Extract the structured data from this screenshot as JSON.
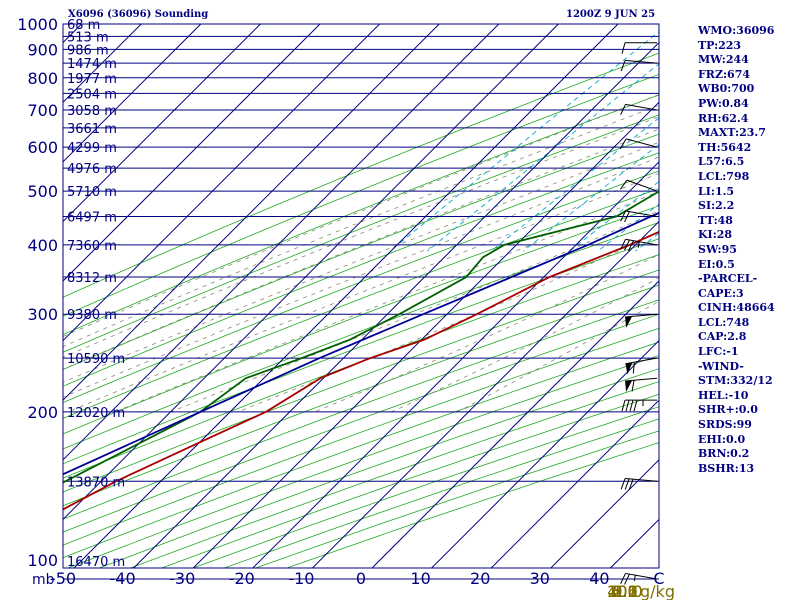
{
  "header": {
    "station": "X6096 (36096) Sounding",
    "time": "1200Z  9 JUN 25"
  },
  "indices": [
    "WMO:36096",
    "TP:223",
    "MW:244",
    "FRZ:674",
    "WB0:700",
    "PW:0.84",
    "RH:62.4",
    "MAXT:23.7",
    "TH:5642",
    "L57:6.5",
    "LCL:798",
    "LI:1.5",
    "SI:2.2",
    "TT:48",
    "KI:28",
    "SW:95",
    "EI:0.5",
    "-PARCEL-",
    "CAPE:3",
    "CINH:48664",
    "LCL:748",
    "CAP:2.8",
    "LFC:-1",
    "-WIND-",
    "STM:332/12",
    "HEL:-10",
    "SHR+:0.0",
    "SRDS:99",
    "EHI:0.0",
    "BRN:0.2",
    "BSHR:13"
  ],
  "chart_data": {
    "type": "line",
    "title": "X6096 (36096) Sounding",
    "ylabel": "mb",
    "xlabel": "C",
    "mixing_ratio_unit": "g/kg",
    "xlim": [
      -50,
      50
    ],
    "ylim": [
      1000,
      100
    ],
    "log_y": true,
    "skewed_isotherms": true,
    "pressure_ticks": [
      100,
      200,
      300,
      400,
      500,
      600,
      700,
      800,
      900,
      1000
    ],
    "temperature_ticks": [
      "-50",
      "-40",
      "-30",
      "-20",
      "-10",
      "0",
      "10",
      "20",
      "30",
      "40",
      "C"
    ],
    "height_labels": [
      {
        "p": 100,
        "label": "16470 m"
      },
      {
        "p": 150,
        "label": "13870 m"
      },
      {
        "p": 200,
        "label": "12020 m"
      },
      {
        "p": 250,
        "label": "10590 m"
      },
      {
        "p": 300,
        "label": "9380 m"
      },
      {
        "p": 350,
        "label": "8312 m"
      },
      {
        "p": 400,
        "label": "7360 m"
      },
      {
        "p": 450,
        "label": "6497 m"
      },
      {
        "p": 500,
        "label": "5710 m"
      },
      {
        "p": 550,
        "label": "4976 m"
      },
      {
        "p": 600,
        "label": "4299 m"
      },
      {
        "p": 650,
        "label": "3661 m"
      },
      {
        "p": 700,
        "label": "3058 m"
      },
      {
        "p": 750,
        "label": "2504 m"
      },
      {
        "p": 800,
        "label": "1977 m"
      },
      {
        "p": 850,
        "label": "1474 m"
      },
      {
        "p": 900,
        "label": "986 m"
      },
      {
        "p": 950,
        "label": "513 m"
      },
      {
        "p": 1000,
        "label": "68 m"
      }
    ],
    "mixing_ratio_labels": [
      {
        "w": 0.1,
        "label": "0.1"
      },
      {
        "w": 0.2,
        "label": "0.2"
      },
      {
        "w": 0.6,
        "label": "0.6"
      },
      {
        "w": 1.0,
        "label": "1.0"
      },
      {
        "w": 2.0,
        "label": "2.0"
      },
      {
        "w": 3.0,
        "label": "3.0"
      },
      {
        "w": 5.0,
        "label": "5.0"
      },
      {
        "w": 10.0,
        "label": "10.0"
      },
      {
        "w": 20.0,
        "label": "20.0"
      },
      {
        "w": 40.0,
        "label": "40.0"
      }
    ],
    "series": [
      {
        "color": "#aa0000",
        "points": [
          {
            "p": 942,
            "t": 27.6
          },
          {
            "p": 925,
            "t": 21.5
          },
          {
            "p": 900,
            "t": 20.0
          },
          {
            "p": 850,
            "t": 19.5
          },
          {
            "p": 800,
            "t": 19.0
          },
          {
            "p": 740,
            "t": 21.0
          },
          {
            "p": 700,
            "t": 17.0
          },
          {
            "p": 650,
            "t": 14.5
          },
          {
            "p": 600,
            "t": 10.5
          },
          {
            "p": 550,
            "t": 5.5
          },
          {
            "p": 500,
            "t": 0.5
          },
          {
            "p": 450,
            "t": -5.0
          },
          {
            "p": 400,
            "t": -11.0
          },
          {
            "p": 350,
            "t": -19.0
          },
          {
            "p": 300,
            "t": -25.0
          },
          {
            "p": 270,
            "t": -29.5
          },
          {
            "p": 250,
            "t": -35.5
          },
          {
            "p": 230,
            "t": -40.5
          },
          {
            "p": 200,
            "t": -44.0
          },
          {
            "p": 180,
            "t": -49.0
          },
          {
            "p": 160,
            "t": -54.5
          },
          {
            "p": 150,
            "t": -57.5
          },
          {
            "p": 120,
            "t": -65.5
          },
          {
            "p": 100,
            "t": -72.0
          }
        ]
      },
      {
        "color": "#006000",
        "points": [
          {
            "p": 942,
            "t": 14.5
          },
          {
            "p": 942,
            "t": 8.5
          },
          {
            "p": 900,
            "t": 7.0
          },
          {
            "p": 850,
            "t": 4.8
          },
          {
            "p": 800,
            "t": 3.0
          },
          {
            "p": 750,
            "t": 1.5
          },
          {
            "p": 700,
            "t": -1.0
          },
          {
            "p": 650,
            "t": -3.5
          },
          {
            "p": 600,
            "t": -7.0
          },
          {
            "p": 550,
            "t": -11.0
          },
          {
            "p": 500,
            "t": -15.0
          },
          {
            "p": 450,
            "t": -18.0
          },
          {
            "p": 400,
            "t": -32.0
          },
          {
            "p": 380,
            "t": -33.5
          },
          {
            "p": 350,
            "t": -33.0
          },
          {
            "p": 300,
            "t": -38.0
          },
          {
            "p": 270,
            "t": -42.0
          },
          {
            "p": 250,
            "t": -47.0
          },
          {
            "p": 230,
            "t": -53.0
          },
          {
            "p": 200,
            "t": -55.0
          },
          {
            "p": 180,
            "t": -59.0
          },
          {
            "p": 150,
            "t": -66.0
          },
          {
            "p": 120,
            "t": -75.0
          },
          {
            "p": 100,
            "t": -83.0
          }
        ]
      },
      {
        "color": "#000099",
        "points": [
          {
            "p": 942,
            "t": 24.0
          },
          {
            "p": 925,
            "t": 21.0
          },
          {
            "p": 900,
            "t": 18.5
          },
          {
            "p": 850,
            "t": 16.0
          },
          {
            "p": 798,
            "t": 14.0
          },
          {
            "p": 750,
            "t": 12.5
          },
          {
            "p": 700,
            "t": 9.5
          },
          {
            "p": 600,
            "t": 2.0
          },
          {
            "p": 500,
            "t": -7.0
          },
          {
            "p": 400,
            "t": -18.0
          },
          {
            "p": 300,
            "t": -34.0
          },
          {
            "p": 250,
            "t": -44.0
          },
          {
            "p": 200,
            "t": -55.0
          },
          {
            "p": 150,
            "t": -69.0
          },
          {
            "p": 120,
            "t": -80.0
          },
          {
            "p": 110,
            "t": -84.0
          }
        ]
      }
    ],
    "wind_barbs": [
      {
        "p": 925,
        "dir": 270,
        "spd": 10
      },
      {
        "p": 850,
        "dir": 275,
        "spd": 10
      },
      {
        "p": 700,
        "dir": 280,
        "spd": 10
      },
      {
        "p": 600,
        "dir": 285,
        "spd": 10
      },
      {
        "p": 500,
        "dir": 290,
        "spd": 10
      },
      {
        "p": 450,
        "dir": 280,
        "spd": 20
      },
      {
        "p": 400,
        "dir": 280,
        "spd": 35
      },
      {
        "p": 300,
        "dir": 265,
        "spd": 50
      },
      {
        "p": 250,
        "dir": 260,
        "spd": 60
      },
      {
        "p": 230,
        "dir": 265,
        "spd": 60
      },
      {
        "p": 210,
        "dir": 270,
        "spd": 45
      },
      {
        "p": 150,
        "dir": 275,
        "spd": 30
      },
      {
        "p": 100,
        "dir": 280,
        "spd": 25
      }
    ]
  }
}
